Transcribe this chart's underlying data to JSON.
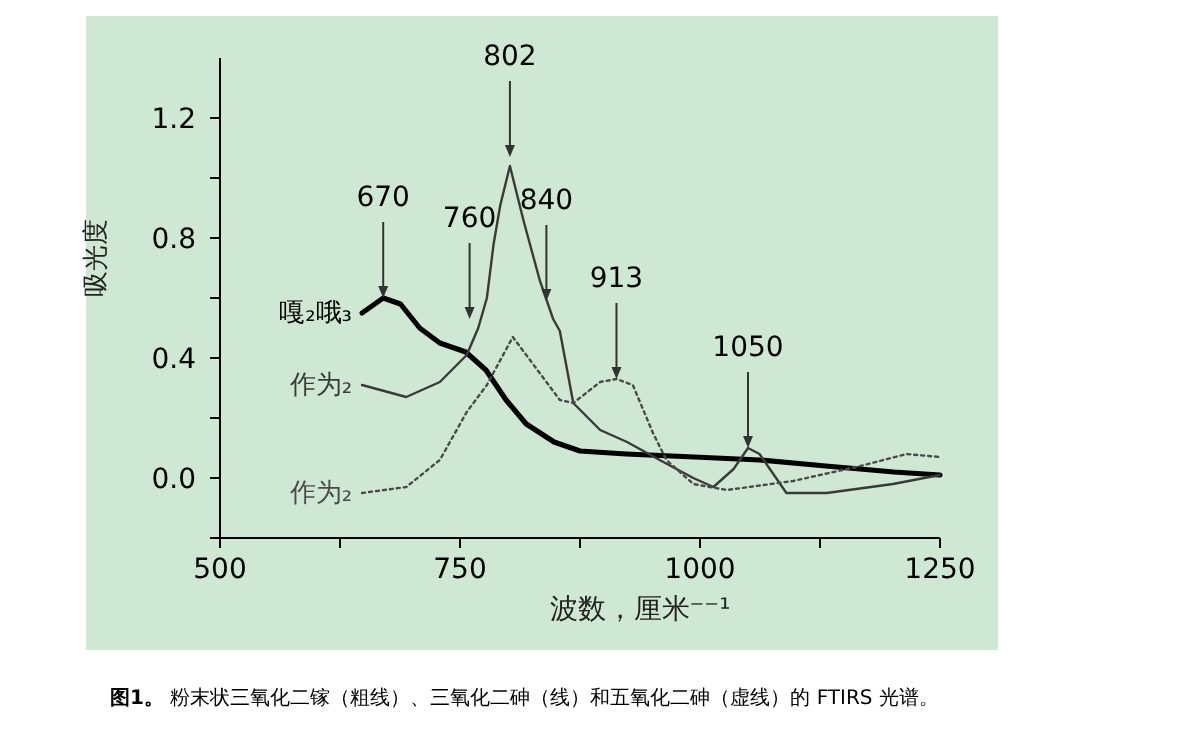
{
  "chart_data": {
    "type": "line",
    "xlabel": "波数，厘米⁻⁻¹",
    "ylabel": "吸光度",
    "xlim": [
      500,
      1250
    ],
    "ylim": [
      -0.2,
      1.4
    ],
    "xticks": [
      500,
      {
        "value": 625,
        "label": null
      },
      750,
      {
        "value": 875,
        "label": null
      },
      1000,
      {
        "value": 1125,
        "label": null
      },
      1250
    ],
    "yticks": [
      {
        "value": -0.2,
        "label": null
      },
      {
        "value": 0,
        "label": "0.0"
      },
      {
        "value": 0.2,
        "label": null
      },
      {
        "value": 0.4,
        "label": "0.4"
      },
      {
        "value": 0.6,
        "label": null
      },
      {
        "value": 0.8,
        "label": "0.8"
      },
      {
        "value": 1.0,
        "label": null
      },
      {
        "value": 1.2,
        "label": "1.2"
      }
    ],
    "series": [
      {
        "name": "嘎₂哦₃",
        "color": "#000000",
        "line_style": "solid",
        "x": [
          648,
          670,
          688,
          708,
          729,
          756,
          777,
          798,
          819,
          848,
          875,
          923,
          994,
          1062,
          1131,
          1202,
          1250
        ],
        "values": [
          0.55,
          0.6,
          0.58,
          0.5,
          0.45,
          0.42,
          0.36,
          0.26,
          0.18,
          0.12,
          0.09,
          0.08,
          0.07,
          0.06,
          0.04,
          0.02,
          0.01
        ]
      },
      {
        "name": "作为₂",
        "color": "#3a3a3a",
        "line_style": "solid",
        "x": [
          648,
          694,
          729,
          757,
          769,
          778,
          785,
          792,
          802,
          816,
          833,
          847,
          854,
          868,
          896,
          924,
          958,
          993,
          1014,
          1035,
          1050,
          1062,
          1090,
          1132,
          1201,
          1250
        ],
        "values": [
          0.31,
          0.27,
          0.32,
          0.41,
          0.5,
          0.6,
          0.78,
          0.91,
          1.04,
          0.86,
          0.66,
          0.53,
          0.49,
          0.25,
          0.16,
          0.12,
          0.06,
          0.0,
          -0.03,
          0.03,
          0.1,
          0.08,
          -0.05,
          -0.05,
          -0.02,
          0.01
        ]
      },
      {
        "name": "作为₂",
        "color": "#4a4a4a",
        "line_style": "dotted",
        "x": [
          648,
          694,
          729,
          757,
          778,
          805,
          833,
          854,
          868,
          896,
          913,
          930,
          951,
          965,
          993,
          1028,
          1097,
          1167,
          1215,
          1250
        ],
        "values": [
          -0.05,
          -0.03,
          0.06,
          0.22,
          0.31,
          0.47,
          0.35,
          0.26,
          0.25,
          0.32,
          0.33,
          0.31,
          0.15,
          0.06,
          -0.02,
          -0.04,
          -0.01,
          0.04,
          0.08,
          0.07
        ]
      }
    ],
    "annotations": [
      {
        "text": "670",
        "x": 670,
        "y": 0.6
      },
      {
        "text": "760",
        "x": 760,
        "y": 0.53
      },
      {
        "text": "802",
        "x": 802,
        "y": 1.07
      },
      {
        "text": "840",
        "x": 840,
        "y": 0.59
      },
      {
        "text": "913",
        "x": 913,
        "y": 0.33
      },
      {
        "text": "1050",
        "x": 1050,
        "y": 0.1
      },
      "图1。 粉末状三氧化二镓（粗线）、三氧化二砷（线）和五氧化二砷（虚线）的 FTIRS 光谱。"
    ]
  }
}
